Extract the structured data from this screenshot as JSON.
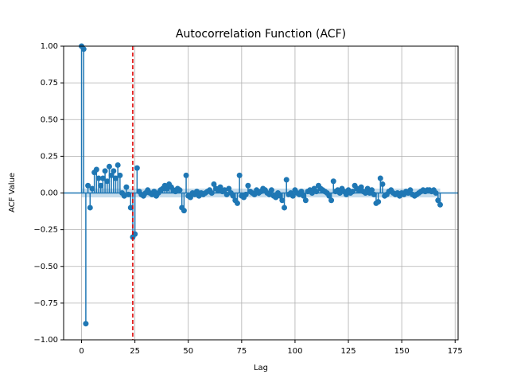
{
  "chart_data": {
    "type": "stem",
    "title": "Autocorrelation Function (ACF)",
    "x_label": "Lag",
    "y_label": "ACF Value",
    "x": [
      0,
      1,
      2,
      3,
      4,
      5,
      6,
      7,
      8,
      9,
      10,
      11,
      12,
      13,
      14,
      15,
      16,
      17,
      18,
      19,
      20,
      21,
      22,
      23,
      24,
      25,
      26,
      27,
      28,
      29,
      30,
      31,
      32,
      33,
      34,
      35,
      36,
      37,
      38,
      39,
      40,
      41,
      42,
      43,
      44,
      45,
      46,
      47,
      48,
      49,
      50,
      51,
      52,
      53,
      54,
      55,
      56,
      57,
      58,
      59,
      60,
      61,
      62,
      63,
      64,
      65,
      66,
      67,
      68,
      69,
      70,
      71,
      72,
      73,
      74,
      75,
      76,
      77,
      78,
      79,
      80,
      81,
      82,
      83,
      84,
      85,
      86,
      87,
      88,
      89,
      90,
      91,
      92,
      93,
      94,
      95,
      96,
      97,
      98,
      99,
      100,
      101,
      102,
      103,
      104,
      105,
      106,
      107,
      108,
      109,
      110,
      111,
      112,
      113,
      114,
      115,
      116,
      117,
      118,
      119,
      120,
      121,
      122,
      123,
      124,
      125,
      126,
      127,
      128,
      129,
      130,
      131,
      132,
      133,
      134,
      135,
      136,
      137,
      138,
      139,
      140,
      141,
      142,
      143,
      144,
      145,
      146,
      147,
      148,
      149,
      150,
      151,
      152,
      153,
      154,
      155,
      156,
      157,
      158,
      159,
      160,
      161,
      162,
      163,
      164,
      165,
      166,
      167,
      168
    ],
    "values": [
      1.0,
      0.98,
      -0.89,
      0.05,
      -0.1,
      0.03,
      0.14,
      0.16,
      0.1,
      0.05,
      0.1,
      0.15,
      0.08,
      0.18,
      0.12,
      0.15,
      0.1,
      0.19,
      0.12,
      0.0,
      -0.02,
      0.04,
      -0.01,
      -0.1,
      -0.3,
      -0.28,
      0.17,
      0.01,
      -0.01,
      -0.02,
      0.0,
      0.02,
      0.0,
      -0.01,
      0.01,
      -0.02,
      0.0,
      0.02,
      0.03,
      0.05,
      0.03,
      0.06,
      0.04,
      0.02,
      0.01,
      0.03,
      0.02,
      -0.1,
      -0.12,
      0.12,
      -0.02,
      -0.03,
      0.0,
      -0.01,
      0.01,
      -0.02,
      0.0,
      -0.01,
      0.0,
      0.01,
      0.02,
      0.0,
      0.06,
      0.03,
      0.02,
      0.04,
      0.01,
      0.02,
      -0.01,
      0.03,
      0.0,
      -0.02,
      -0.05,
      -0.07,
      0.12,
      -0.02,
      -0.03,
      -0.01,
      0.05,
      0.01,
      0.0,
      -0.01,
      0.02,
      0.0,
      0.01,
      0.03,
      0.02,
      0.0,
      -0.01,
      0.02,
      -0.02,
      -0.03,
      0.0,
      -0.02,
      -0.05,
      -0.1,
      0.09,
      -0.01,
      0.0,
      -0.02,
      0.02,
      0.0,
      -0.01,
      0.01,
      -0.02,
      -0.05,
      0.01,
      0.02,
      0.0,
      0.03,
      0.01,
      0.05,
      0.03,
      0.02,
      0.01,
      0.0,
      -0.02,
      -0.05,
      0.08,
      0.01,
      0.02,
      0.0,
      0.03,
      0.01,
      -0.01,
      0.02,
      0.0,
      0.01,
      0.05,
      0.03,
      0.02,
      0.04,
      0.01,
      0.0,
      0.03,
      0.0,
      0.02,
      -0.01,
      -0.07,
      -0.06,
      0.1,
      0.06,
      -0.02,
      -0.01,
      0.01,
      0.02,
      0.0,
      -0.01,
      0.0,
      -0.02,
      0.0,
      -0.01,
      0.01,
      0.0,
      0.02,
      -0.01,
      -0.02,
      -0.01,
      0.0,
      0.01,
      0.02,
      0.01,
      0.02,
      0.02,
      0.01,
      0.02,
      0.0,
      -0.05,
      -0.08
    ],
    "color": "#1f77b4",
    "confint": 0.03,
    "vline": 24,
    "vline_color": "#dd0000",
    "xlim": [
      -8.4,
      176.4
    ],
    "ylim": [
      -1,
      1
    ],
    "xticks": [
      0,
      25,
      50,
      75,
      100,
      125,
      150,
      175
    ],
    "yticks": [
      {
        "value": -1,
        "label": "−1.00"
      },
      {
        "value": -0.75,
        "label": "−0.75"
      },
      {
        "value": -0.5,
        "label": "−0.50"
      },
      {
        "value": -0.25,
        "label": "−0.25"
      },
      {
        "value": 0,
        "label": "0.00"
      },
      {
        "value": 0.25,
        "label": "0.25"
      },
      {
        "value": 0.5,
        "label": "0.50"
      },
      {
        "value": 0.75,
        "label": "0.75"
      },
      {
        "value": 1,
        "label": "1.00"
      }
    ],
    "grid": true
  }
}
